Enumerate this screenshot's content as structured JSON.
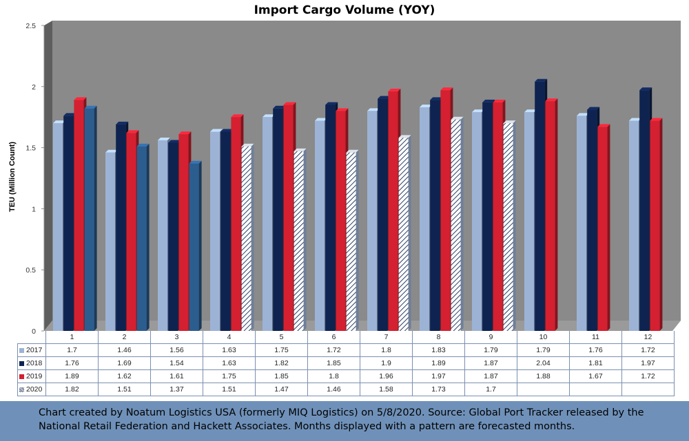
{
  "chart_data": {
    "type": "bar",
    "title": "Import Cargo Volume (YOY)",
    "ylabel": "TEU (Million Count)",
    "ylim": [
      0,
      2.5
    ],
    "yticks": [
      "0",
      "0.5",
      "1",
      "1.5",
      "2",
      "2.5"
    ],
    "categories": [
      "1",
      "2",
      "3",
      "4",
      "5",
      "6",
      "7",
      "8",
      "9",
      "10",
      "11",
      "12"
    ],
    "series": [
      {
        "name": "2017",
        "color": "#9cb3d6",
        "values": [
          1.7,
          1.46,
          1.56,
          1.63,
          1.75,
          1.72,
          1.8,
          1.83,
          1.79,
          1.79,
          1.76,
          1.72
        ]
      },
      {
        "name": "2018",
        "color": "#0e2350",
        "values": [
          1.76,
          1.69,
          1.54,
          1.63,
          1.82,
          1.85,
          1.9,
          1.89,
          1.87,
          2.04,
          1.81,
          1.97
        ]
      },
      {
        "name": "2019",
        "color": "#d42030",
        "values": [
          1.89,
          1.62,
          1.61,
          1.75,
          1.85,
          1.8,
          1.96,
          1.97,
          1.87,
          1.88,
          1.67,
          1.72
        ]
      },
      {
        "name": "2020",
        "color": "#2c5d8f",
        "values": [
          1.82,
          1.51,
          1.37,
          1.51,
          1.47,
          1.46,
          1.58,
          1.73,
          1.7,
          null,
          null,
          null
        ],
        "forecast_from_month": "4"
      }
    ],
    "legend": "table-below",
    "grid": false
  },
  "footer": {
    "note": "Chart created by Noatum Logistics USA (formerly MIQ Logistics) on 5/8/2020. Source: Global Port Tracker released by the National Retail Federation and Hackett Associates. Months displayed with a pattern are forecasted months."
  }
}
